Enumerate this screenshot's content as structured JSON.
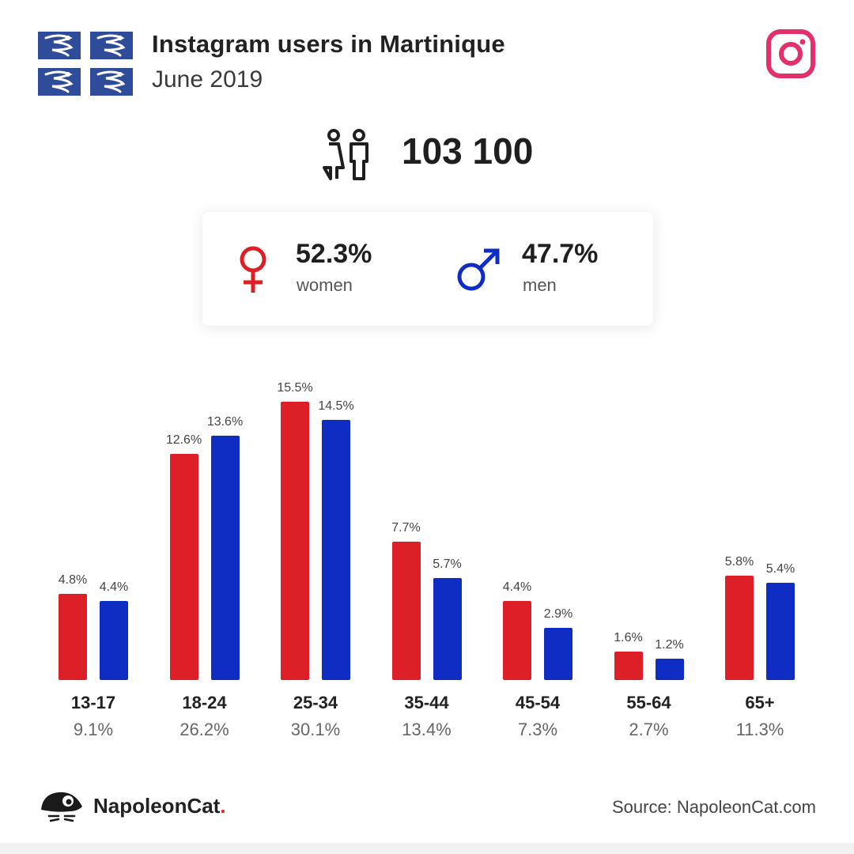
{
  "header": {
    "title": "Instagram users in Martinique",
    "subtitle": "June 2019",
    "flag_icon": "martinique-flag-icon",
    "social_icon": "instagram-icon"
  },
  "total": {
    "icon": "people-icon",
    "value": "103 100"
  },
  "gender": {
    "women": {
      "icon": "female-symbol-icon",
      "percent": "52.3%",
      "label": "women",
      "color": "#dd2027"
    },
    "men": {
      "icon": "male-symbol-icon",
      "percent": "47.7%",
      "label": "men",
      "color": "#0f2cc3"
    }
  },
  "chart_data": {
    "type": "bar",
    "categories": [
      "13-17",
      "18-24",
      "25-34",
      "35-44",
      "45-54",
      "55-64",
      "65+"
    ],
    "category_shares": [
      "9.1%",
      "26.2%",
      "30.1%",
      "13.4%",
      "7.3%",
      "2.7%",
      "11.3%"
    ],
    "series": [
      {
        "name": "women",
        "color": "#dd2027",
        "values": [
          4.8,
          12.6,
          15.5,
          7.7,
          4.4,
          1.6,
          5.8
        ],
        "labels": [
          "4.8%",
          "12.6%",
          "15.5%",
          "7.7%",
          "4.4%",
          "1.6%",
          "5.8%"
        ]
      },
      {
        "name": "men",
        "color": "#0f2cc3",
        "values": [
          4.4,
          13.6,
          14.5,
          5.7,
          2.9,
          1.2,
          5.4
        ],
        "labels": [
          "4.4%",
          "13.6%",
          "14.5%",
          "5.7%",
          "2.9%",
          "1.2%",
          "5.4%"
        ]
      }
    ],
    "grid": false,
    "legend": "none"
  },
  "footer": {
    "logo_icon": "napoleoncat-logo-icon",
    "brand": "NapoleonCat",
    "brand_dot": ".",
    "source": "Source: NapoleonCat.com"
  }
}
